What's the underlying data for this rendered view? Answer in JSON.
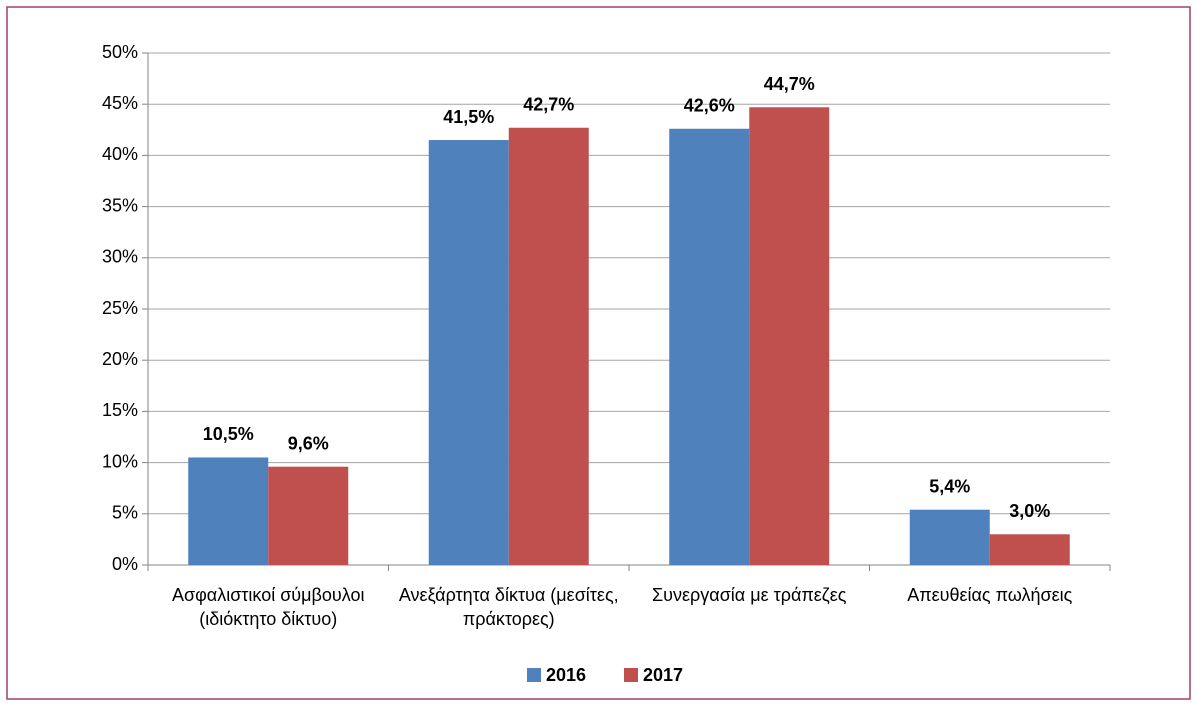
{
  "chart_data": {
    "type": "bar",
    "categories": [
      "Ασφαλιστικοί σύμβουλοι (ιδιόκτητο δίκτυο)",
      "Ανεξάρτητα δίκτυα (μεσίτες, πράκτορες)",
      "Συνεργασία με τράπεζες",
      "Απευθείας πωλήσεις"
    ],
    "series": [
      {
        "name": "2016",
        "color": "#4f81bd",
        "values": [
          10.5,
          41.5,
          42.6,
          5.4
        ],
        "value_labels": [
          "10,5%",
          "41,5%",
          "42,6%",
          "5,4%"
        ]
      },
      {
        "name": "2017",
        "color": "#c0504d",
        "values": [
          9.6,
          42.7,
          44.7,
          3.0
        ],
        "value_labels": [
          "9,6%",
          "42,7%",
          "44,7%",
          "3,0%"
        ]
      }
    ],
    "ylim": [
      0,
      50
    ],
    "yticks": [
      {
        "value": 0,
        "label": "0%"
      },
      {
        "value": 5,
        "label": "5%"
      },
      {
        "value": 10,
        "label": "10%"
      },
      {
        "value": 15,
        "label": "15%"
      },
      {
        "value": 20,
        "label": "20%"
      },
      {
        "value": 25,
        "label": "25%"
      },
      {
        "value": 30,
        "label": "30%"
      },
      {
        "value": 35,
        "label": "35%"
      },
      {
        "value": 40,
        "label": "40%"
      },
      {
        "value": 45,
        "label": "45%"
      },
      {
        "value": 50,
        "label": "50%"
      }
    ],
    "grid": true,
    "legend": "bottom"
  }
}
